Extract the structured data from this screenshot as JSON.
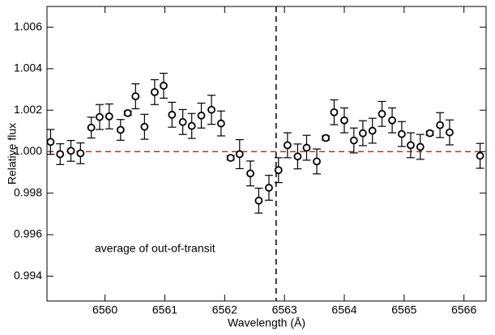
{
  "chart_data": {
    "type": "scatter",
    "xlabel": "Wavelength (Å)",
    "ylabel": "Relative flux",
    "annotation": "average of out-of-transit",
    "x": [
      6559.09,
      6559.25,
      6559.43,
      6559.59,
      6559.77,
      6559.91,
      6560.07,
      6560.26,
      6560.38,
      6560.51,
      6560.66,
      6560.83,
      6560.98,
      6561.12,
      6561.3,
      6561.45,
      6561.61,
      6561.78,
      6561.94,
      6562.1,
      6562.25,
      6562.43,
      6562.57,
      6562.74,
      6562.9,
      6563.05,
      6563.22,
      6563.37,
      6563.54,
      6563.69,
      6563.83,
      6564.0,
      6564.16,
      6564.31,
      6564.47,
      6564.63,
      6564.8,
      6564.96,
      6565.11,
      6565.27,
      6565.43,
      6565.6,
      6565.76,
      6566.27
    ],
    "series": [
      {
        "color": "#000000",
        "values": [
          1.00047,
          0.99988,
          1.00004,
          0.99992,
          1.00116,
          1.00167,
          1.0017,
          1.00105,
          1.00186,
          1.00267,
          1.0012,
          1.00287,
          1.00318,
          1.00178,
          1.00143,
          1.00124,
          1.00174,
          1.00202,
          1.00136,
          0.9997,
          0.99988,
          0.99895,
          0.99764,
          0.99826,
          0.99911,
          1.00031,
          0.99977,
          1.00019,
          0.99953,
          1.00066,
          1.0019,
          1.00151,
          1.00054,
          1.00089,
          1.00101,
          1.00182,
          1.00151,
          1.00085,
          1.00031,
          1.00023,
          1.00089,
          1.00128,
          1.00093,
          0.9998
        ],
        "errors": [
          0.0006,
          0.0005,
          0.0005,
          0.0005,
          0.0005,
          0.0006,
          0.0006,
          0.0005,
          0.0001,
          0.0006,
          0.0006,
          0.0006,
          0.0006,
          0.0006,
          0.0006,
          0.0006,
          0.0006,
          0.0007,
          0.0006,
          0.0001,
          0.0007,
          0.0006,
          0.0006,
          0.0006,
          0.0006,
          0.0006,
          0.0006,
          0.0006,
          0.0006,
          0.0001,
          0.0006,
          0.0006,
          0.0006,
          0.0006,
          0.0006,
          0.0006,
          0.0006,
          0.0006,
          0.0006,
          0.0006,
          0.0001,
          0.0006,
          0.0006,
          0.0006
        ]
      }
    ],
    "xlim": [
      6559.03,
      6566.37
    ],
    "ylim": [
      0.9928,
      1.007
    ],
    "xticks": [
      6560,
      6561,
      6562,
      6563,
      6564,
      6565,
      6566
    ],
    "yticks": [
      0.994,
      0.996,
      0.998,
      {
        "value": 1.0,
        "label": "1.000"
      },
      1.002,
      1.004,
      1.006
    ],
    "hline": 1.0,
    "hline_color": "#e02020",
    "vline": 6562.86,
    "vline_color": "#000000"
  }
}
